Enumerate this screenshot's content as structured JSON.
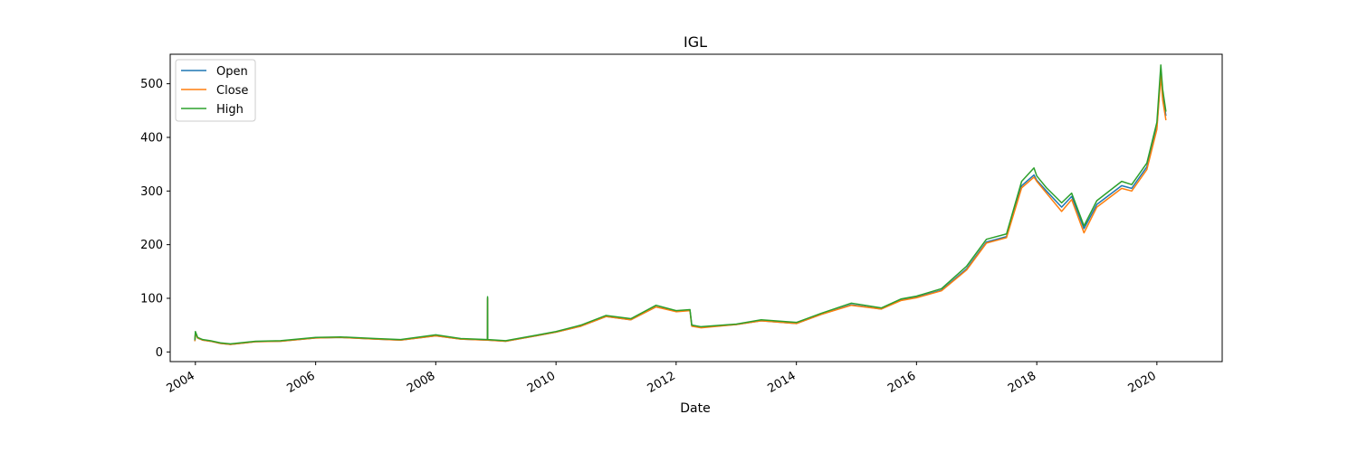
{
  "chart_data": {
    "type": "line",
    "title": "IGL",
    "xlabel": "Date",
    "ylabel": "",
    "xlim": [
      "2003-08-01",
      "2021-02-01"
    ],
    "ylim": [
      -18,
      555
    ],
    "x_ticks": [
      "2004",
      "2006",
      "2008",
      "2010",
      "2012",
      "2014",
      "2016",
      "2018",
      "2020"
    ],
    "y_ticks": [
      0,
      100,
      200,
      300,
      400,
      500
    ],
    "grid": false,
    "legend_position": "top-left",
    "series": [
      {
        "name": "Open",
        "color": "#1f77b4",
        "points": [
          [
            "2003-12-29",
            20
          ],
          [
            "2004-01-01",
            35
          ],
          [
            "2004-01-15",
            26
          ],
          [
            "2004-02-15",
            22
          ],
          [
            "2004-04-01",
            20
          ],
          [
            "2004-06-01",
            16
          ],
          [
            "2004-08-01",
            14
          ],
          [
            "2004-11-01",
            17
          ],
          [
            "2005-01-01",
            19
          ],
          [
            "2005-06-01",
            20
          ],
          [
            "2006-01-01",
            26
          ],
          [
            "2006-06-01",
            27
          ],
          [
            "2007-01-01",
            24
          ],
          [
            "2007-06-01",
            22
          ],
          [
            "2008-01-01",
            30
          ],
          [
            "2008-06-01",
            24
          ],
          [
            "2008-11-10",
            22
          ],
          [
            "2008-11-11",
            100
          ],
          [
            "2008-11-12",
            22
          ],
          [
            "2009-03-01",
            20
          ],
          [
            "2009-09-01",
            30
          ],
          [
            "2010-01-01",
            37
          ],
          [
            "2010-06-01",
            48
          ],
          [
            "2010-11-01",
            66
          ],
          [
            "2011-04-01",
            60
          ],
          [
            "2011-09-01",
            84
          ],
          [
            "2012-01-01",
            76
          ],
          [
            "2012-03-25",
            78
          ],
          [
            "2012-04-05",
            50
          ],
          [
            "2012-06-01",
            46
          ],
          [
            "2013-01-01",
            51
          ],
          [
            "2013-06-01",
            58
          ],
          [
            "2014-01-01",
            53
          ],
          [
            "2014-06-01",
            70
          ],
          [
            "2014-12-01",
            88
          ],
          [
            "2015-06-01",
            80
          ],
          [
            "2015-10-01",
            97
          ],
          [
            "2016-01-01",
            102
          ],
          [
            "2016-06-01",
            115
          ],
          [
            "2016-11-01",
            155
          ],
          [
            "2017-03-01",
            205
          ],
          [
            "2017-07-01",
            215
          ],
          [
            "2017-10-01",
            310
          ],
          [
            "2017-12-15",
            330
          ],
          [
            "2018-01-01",
            320
          ],
          [
            "2018-03-01",
            300
          ],
          [
            "2018-06-01",
            270
          ],
          [
            "2018-08-01",
            290
          ],
          [
            "2018-10-15",
            230
          ],
          [
            "2019-01-01",
            275
          ],
          [
            "2019-06-01",
            310
          ],
          [
            "2019-08-01",
            305
          ],
          [
            "2019-11-01",
            345
          ],
          [
            "2020-01-01",
            420
          ],
          [
            "2020-01-25",
            520
          ],
          [
            "2020-02-05",
            480
          ],
          [
            "2020-02-25",
            440
          ]
        ]
      },
      {
        "name": "Close",
        "color": "#ff7f0e",
        "points": [
          [
            "2003-12-29",
            20
          ],
          [
            "2004-01-01",
            34
          ],
          [
            "2004-01-15",
            26
          ],
          [
            "2004-02-15",
            22
          ],
          [
            "2004-04-01",
            20
          ],
          [
            "2004-06-01",
            16
          ],
          [
            "2004-08-01",
            14
          ],
          [
            "2004-11-01",
            17
          ],
          [
            "2005-01-01",
            19
          ],
          [
            "2005-06-01",
            20
          ],
          [
            "2006-01-01",
            26
          ],
          [
            "2006-06-01",
            27
          ],
          [
            "2007-01-01",
            24
          ],
          [
            "2007-06-01",
            22
          ],
          [
            "2008-01-01",
            30
          ],
          [
            "2008-06-01",
            24
          ],
          [
            "2008-11-10",
            22
          ],
          [
            "2008-11-11",
            100
          ],
          [
            "2008-11-12",
            22
          ],
          [
            "2009-03-01",
            20
          ],
          [
            "2009-09-01",
            30
          ],
          [
            "2010-01-01",
            37
          ],
          [
            "2010-06-01",
            48
          ],
          [
            "2010-11-01",
            66
          ],
          [
            "2011-04-01",
            60
          ],
          [
            "2011-09-01",
            84
          ],
          [
            "2012-01-01",
            75
          ],
          [
            "2012-03-25",
            77
          ],
          [
            "2012-04-05",
            48
          ],
          [
            "2012-06-01",
            45
          ],
          [
            "2013-01-01",
            51
          ],
          [
            "2013-06-01",
            58
          ],
          [
            "2014-01-01",
            53
          ],
          [
            "2014-06-01",
            70
          ],
          [
            "2014-12-01",
            87
          ],
          [
            "2015-06-01",
            80
          ],
          [
            "2015-10-01",
            96
          ],
          [
            "2016-01-01",
            101
          ],
          [
            "2016-06-01",
            114
          ],
          [
            "2016-11-01",
            153
          ],
          [
            "2017-03-01",
            203
          ],
          [
            "2017-07-01",
            213
          ],
          [
            "2017-10-01",
            306
          ],
          [
            "2017-12-15",
            326
          ],
          [
            "2018-01-01",
            318
          ],
          [
            "2018-03-01",
            296
          ],
          [
            "2018-06-01",
            262
          ],
          [
            "2018-08-01",
            284
          ],
          [
            "2018-10-15",
            222
          ],
          [
            "2019-01-01",
            270
          ],
          [
            "2019-06-01",
            305
          ],
          [
            "2019-08-01",
            300
          ],
          [
            "2019-11-01",
            340
          ],
          [
            "2020-01-01",
            415
          ],
          [
            "2020-01-25",
            515
          ],
          [
            "2020-02-05",
            470
          ],
          [
            "2020-02-25",
            432
          ]
        ]
      },
      {
        "name": "High",
        "color": "#2ca02c",
        "points": [
          [
            "2003-12-29",
            22
          ],
          [
            "2004-01-01",
            38
          ],
          [
            "2004-01-15",
            27
          ],
          [
            "2004-02-15",
            23
          ],
          [
            "2004-04-01",
            21
          ],
          [
            "2004-06-01",
            17
          ],
          [
            "2004-08-01",
            15
          ],
          [
            "2004-11-01",
            18
          ],
          [
            "2005-01-01",
            20
          ],
          [
            "2005-06-01",
            21
          ],
          [
            "2006-01-01",
            27
          ],
          [
            "2006-06-01",
            28
          ],
          [
            "2007-01-01",
            25
          ],
          [
            "2007-06-01",
            23
          ],
          [
            "2008-01-01",
            32
          ],
          [
            "2008-06-01",
            25
          ],
          [
            "2008-11-10",
            23
          ],
          [
            "2008-11-11",
            103
          ],
          [
            "2008-11-12",
            23
          ],
          [
            "2009-03-01",
            21
          ],
          [
            "2009-09-01",
            31
          ],
          [
            "2010-01-01",
            38
          ],
          [
            "2010-06-01",
            50
          ],
          [
            "2010-11-01",
            68
          ],
          [
            "2011-04-01",
            62
          ],
          [
            "2011-09-01",
            87
          ],
          [
            "2012-01-01",
            77
          ],
          [
            "2012-03-25",
            79
          ],
          [
            "2012-04-05",
            50
          ],
          [
            "2012-06-01",
            47
          ],
          [
            "2013-01-01",
            52
          ],
          [
            "2013-06-01",
            60
          ],
          [
            "2014-01-01",
            55
          ],
          [
            "2014-06-01",
            72
          ],
          [
            "2014-12-01",
            91
          ],
          [
            "2015-06-01",
            82
          ],
          [
            "2015-10-01",
            99
          ],
          [
            "2016-01-01",
            104
          ],
          [
            "2016-06-01",
            118
          ],
          [
            "2016-11-01",
            160
          ],
          [
            "2017-03-01",
            210
          ],
          [
            "2017-07-01",
            220
          ],
          [
            "2017-10-01",
            318
          ],
          [
            "2017-12-15",
            343
          ],
          [
            "2018-01-01",
            328
          ],
          [
            "2018-03-01",
            306
          ],
          [
            "2018-06-01",
            278
          ],
          [
            "2018-08-01",
            296
          ],
          [
            "2018-10-15",
            235
          ],
          [
            "2019-01-01",
            282
          ],
          [
            "2019-06-01",
            318
          ],
          [
            "2019-08-01",
            312
          ],
          [
            "2019-11-01",
            352
          ],
          [
            "2020-01-01",
            428
          ],
          [
            "2020-01-25",
            535
          ],
          [
            "2020-02-05",
            490
          ],
          [
            "2020-02-25",
            448
          ]
        ]
      }
    ]
  }
}
